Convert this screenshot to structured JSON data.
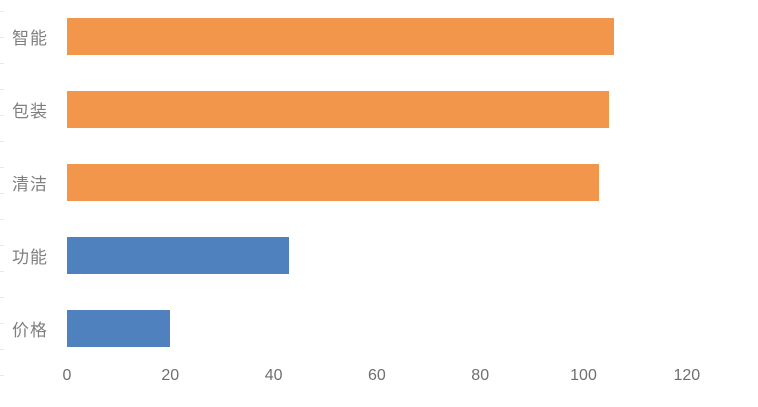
{
  "chart_data": {
    "type": "bar",
    "orientation": "horizontal",
    "title": "",
    "xlabel": "",
    "ylabel": "",
    "categories": [
      "智能",
      "包装",
      "清洁",
      "功能",
      "价格"
    ],
    "values": [
      106,
      105,
      103,
      43,
      20
    ],
    "bar_colors": [
      "#F2964B",
      "#F2964B",
      "#F2964B",
      "#4E81BD",
      "#4E81BD"
    ],
    "xticks": [
      0,
      20,
      40,
      60,
      80,
      100,
      120
    ],
    "xlim": [
      0,
      130
    ],
    "grid": false,
    "legend": "none",
    "axis_lines": "none",
    "label_color": "#7F7F7F",
    "tick_color": "#6F6F6F"
  }
}
